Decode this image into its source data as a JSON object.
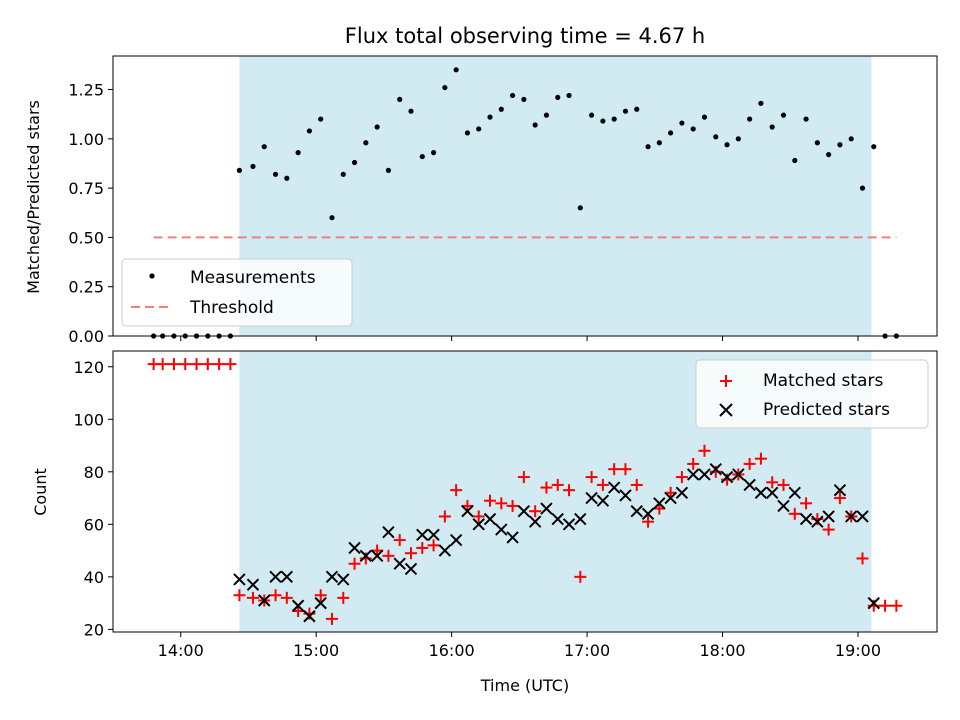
{
  "chart_data": [
    {
      "type": "scatter",
      "title": "Flux total observing time = 4.67 h",
      "xlabel": "",
      "ylabel": "Matched/Predicted stars",
      "xlim": [
        "13:30",
        "19:35"
      ],
      "ylim": [
        0,
        1.42
      ],
      "yticks": [
        "0.00",
        "0.25",
        "0.50",
        "0.75",
        "1.00",
        "1.25"
      ],
      "shaded_region": {
        "from": "14:26",
        "to": "19:06",
        "color": "#add8e6"
      },
      "legend": {
        "position": "lower-left",
        "entries": [
          "Measurements",
          "Threshold"
        ]
      },
      "series": [
        {
          "name": "Measurements",
          "marker": "dot",
          "color": "#000000",
          "x": [
            "13:48",
            "13:52",
            "13:57",
            "14:02",
            "14:07",
            "14:12",
            "14:17",
            "14:22",
            "14:26",
            "14:32",
            "14:37",
            "14:42",
            "14:47",
            "14:52",
            "14:57",
            "15:02",
            "15:07",
            "15:12",
            "15:17",
            "15:22",
            "15:27",
            "15:32",
            "15:37",
            "15:42",
            "15:47",
            "15:52",
            "15:57",
            "16:02",
            "16:07",
            "16:12",
            "16:17",
            "16:22",
            "16:27",
            "16:32",
            "16:37",
            "16:42",
            "16:47",
            "16:52",
            "16:57",
            "17:02",
            "17:07",
            "17:12",
            "17:17",
            "17:22",
            "17:27",
            "17:32",
            "17:37",
            "17:42",
            "17:47",
            "17:52",
            "17:57",
            "18:02",
            "18:07",
            "18:12",
            "18:17",
            "18:22",
            "18:27",
            "18:32",
            "18:37",
            "18:42",
            "18:47",
            "18:52",
            "18:57",
            "19:02",
            "19:07",
            "19:12",
            "19:17"
          ],
          "y": [
            0,
            0,
            0,
            0,
            0,
            0,
            0,
            0,
            0.84,
            0.86,
            0.96,
            0.82,
            0.8,
            0.93,
            1.04,
            1.1,
            0.6,
            0.82,
            0.88,
            0.98,
            1.06,
            0.84,
            1.2,
            1.14,
            0.91,
            0.93,
            1.26,
            1.35,
            1.03,
            1.05,
            1.11,
            1.15,
            1.22,
            1.2,
            1.07,
            1.12,
            1.21,
            1.22,
            0.65,
            1.12,
            1.09,
            1.1,
            1.14,
            1.15,
            0.96,
            0.98,
            1.03,
            1.08,
            1.05,
            1.11,
            1.01,
            0.97,
            1.0,
            1.1,
            1.18,
            1.06,
            1.12,
            0.89,
            1.1,
            0.98,
            0.92,
            0.97,
            1.0,
            0.75,
            0.96,
            0,
            0
          ]
        },
        {
          "name": "Threshold",
          "style": "dashed",
          "color": "#f08080",
          "x": [
            "13:48",
            "19:17"
          ],
          "y": [
            0.5,
            0.5
          ]
        }
      ]
    },
    {
      "type": "scatter",
      "title": "",
      "xlabel": "Time (UTC)",
      "ylabel": "Count",
      "xlim": [
        "13:30",
        "19:35"
      ],
      "ylim": [
        19,
        126
      ],
      "xticks": [
        "14:00",
        "15:00",
        "16:00",
        "17:00",
        "18:00",
        "19:00"
      ],
      "yticks": [
        "20",
        "40",
        "60",
        "80",
        "100",
        "120"
      ],
      "shaded_region": {
        "from": "14:26",
        "to": "19:06",
        "color": "#add8e6"
      },
      "legend": {
        "position": "upper-right",
        "entries": [
          "Matched stars",
          "Predicted stars"
        ]
      },
      "series": [
        {
          "name": "Matched stars",
          "marker": "plus",
          "color": "#ff0000",
          "x": [
            "13:48",
            "13:52",
            "13:57",
            "14:02",
            "14:07",
            "14:12",
            "14:17",
            "14:22",
            "14:26",
            "14:32",
            "14:37",
            "14:42",
            "14:47",
            "14:52",
            "14:57",
            "15:02",
            "15:07",
            "15:12",
            "15:17",
            "15:22",
            "15:27",
            "15:32",
            "15:37",
            "15:42",
            "15:47",
            "15:52",
            "15:57",
            "16:02",
            "16:07",
            "16:12",
            "16:17",
            "16:22",
            "16:27",
            "16:32",
            "16:37",
            "16:42",
            "16:47",
            "16:52",
            "16:57",
            "17:02",
            "17:07",
            "17:12",
            "17:17",
            "17:22",
            "17:27",
            "17:32",
            "17:37",
            "17:42",
            "17:47",
            "17:52",
            "17:57",
            "18:02",
            "18:07",
            "18:12",
            "18:17",
            "18:22",
            "18:27",
            "18:32",
            "18:37",
            "18:42",
            "18:47",
            "18:52",
            "18:57",
            "19:02",
            "19:07",
            "19:12",
            "19:17"
          ],
          "y": [
            121,
            121,
            121,
            121,
            121,
            121,
            121,
            121,
            33,
            32,
            31,
            33,
            32,
            27,
            26,
            33,
            24,
            32,
            45,
            47,
            50,
            48,
            54,
            49,
            51,
            52,
            63,
            73,
            67,
            63,
            69,
            68,
            67,
            78,
            65,
            74,
            75,
            73,
            40,
            78,
            75,
            81,
            81,
            75,
            61,
            66,
            72,
            78,
            83,
            88,
            80,
            77,
            79,
            83,
            85,
            76,
            75,
            64,
            68,
            62,
            58,
            70,
            63,
            47,
            29,
            29,
            29
          ]
        },
        {
          "name": "Predicted stars",
          "marker": "x",
          "color": "#000000",
          "x": [
            "14:26",
            "14:32",
            "14:37",
            "14:42",
            "14:47",
            "14:52",
            "14:57",
            "15:02",
            "15:07",
            "15:12",
            "15:17",
            "15:22",
            "15:27",
            "15:32",
            "15:37",
            "15:42",
            "15:47",
            "15:52",
            "15:57",
            "16:02",
            "16:07",
            "16:12",
            "16:17",
            "16:22",
            "16:27",
            "16:32",
            "16:37",
            "16:42",
            "16:47",
            "16:52",
            "16:57",
            "17:02",
            "17:07",
            "17:12",
            "17:17",
            "17:22",
            "17:27",
            "17:32",
            "17:37",
            "17:42",
            "17:47",
            "17:52",
            "17:57",
            "18:02",
            "18:07",
            "18:12",
            "18:17",
            "18:22",
            "18:27",
            "18:32",
            "18:37",
            "18:42",
            "18:47",
            "18:52",
            "18:57",
            "19:02",
            "19:07"
          ],
          "y": [
            39,
            37,
            31,
            40,
            40,
            29,
            25,
            30,
            40,
            39,
            51,
            48,
            48,
            57,
            45,
            43,
            56,
            56,
            50,
            54,
            65,
            60,
            62,
            58,
            55,
            65,
            61,
            66,
            62,
            60,
            62,
            70,
            69,
            74,
            71,
            65,
            64,
            68,
            70,
            72,
            79,
            79,
            81,
            78,
            79,
            75,
            72,
            72,
            67,
            72,
            62,
            61,
            63,
            73,
            63,
            63,
            30
          ]
        }
      ]
    }
  ]
}
